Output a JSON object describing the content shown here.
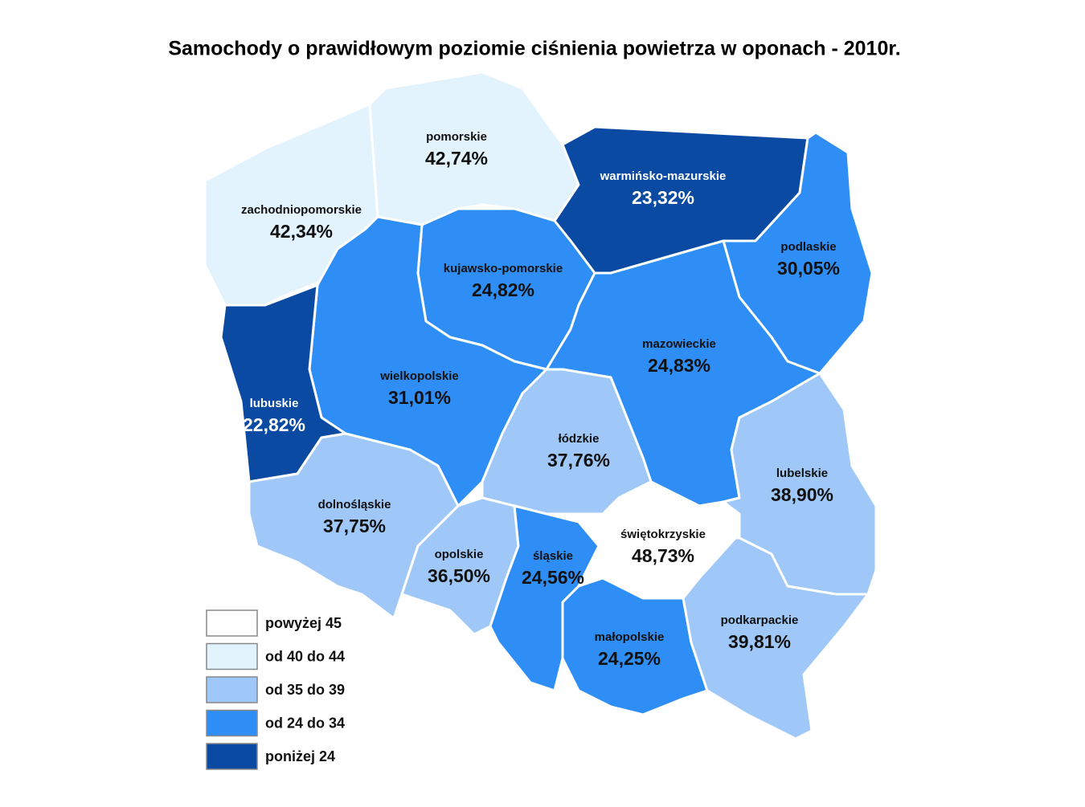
{
  "title": "Samochody o prawidłowym poziomie ciśnienia powietrza w oponach - 2010r.",
  "regions": [
    {
      "name": "zachodniopomorskie",
      "value": "42,34%",
      "color": "#e3f3fd"
    },
    {
      "name": "pomorskie",
      "value": "42,74%",
      "color": "#e3f3fd"
    },
    {
      "name": "warmińsko-mazurskie",
      "value": "23,32%",
      "color": "#0b4aa2"
    },
    {
      "name": "podlaskie",
      "value": "30,05%",
      "color": "#2f8ef5"
    },
    {
      "name": "kujawsko-pomorskie",
      "value": "24,82%",
      "color": "#2f8ef5"
    },
    {
      "name": "wielkopolskie",
      "value": "31,01%",
      "color": "#2f8ef5"
    },
    {
      "name": "lubuskie",
      "value": "22,82%",
      "color": "#0b4aa2"
    },
    {
      "name": "mazowieckie",
      "value": "24,83%",
      "color": "#2f8ef5"
    },
    {
      "name": "łódzkie",
      "value": "37,76%",
      "color": "#9fc8f8"
    },
    {
      "name": "dolnośląskie",
      "value": "37,75%",
      "color": "#9fc8f8"
    },
    {
      "name": "opolskie",
      "value": "36,50%",
      "color": "#9fc8f8"
    },
    {
      "name": "śląskie",
      "value": "24,56%",
      "color": "#2f8ef5"
    },
    {
      "name": "świętokrzyskie",
      "value": "48,73%",
      "color": "#ffffff"
    },
    {
      "name": "małopolskie",
      "value": "24,25%",
      "color": "#2f8ef5"
    },
    {
      "name": "lubelskie",
      "value": "38,90%",
      "color": "#9fc8f8"
    },
    {
      "name": "podkarpackie",
      "value": "39,81%",
      "color": "#9fc8f8"
    }
  ],
  "legend": [
    {
      "label": "powyżej 45",
      "color": "#ffffff"
    },
    {
      "label": "od 40 do 44",
      "color": "#e3f3fd"
    },
    {
      "label": "od 35 do 39",
      "color": "#9fc8f8"
    },
    {
      "label": "od 24 do 34",
      "color": "#2f8ef5"
    },
    {
      "label": "poniżej 24",
      "color": "#0b4aa2"
    }
  ]
}
